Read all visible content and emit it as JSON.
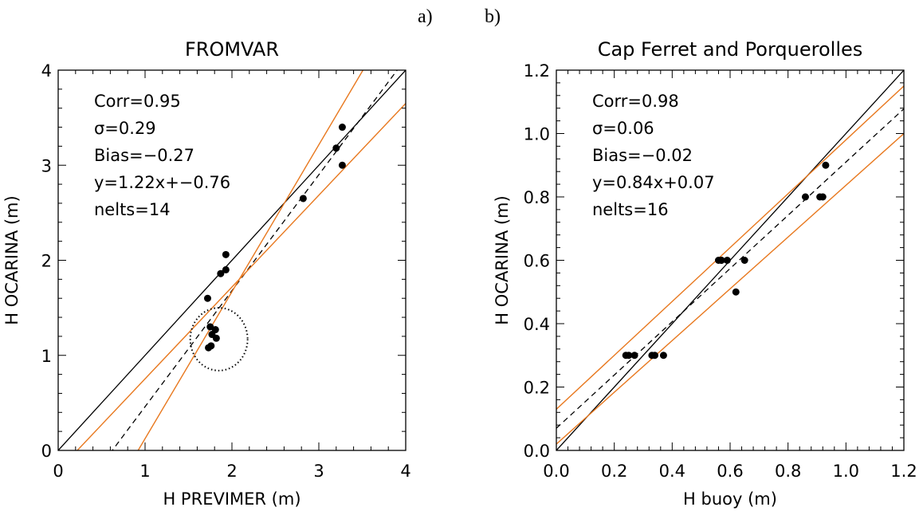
{
  "panel_labels": [
    "a)",
    "b)"
  ],
  "chart_data": [
    {
      "type": "scatter",
      "title": "FROMVAR",
      "xlabel": "H PREVIMER (m)",
      "ylabel": "H OCARINA (m)",
      "xlim": [
        0,
        4
      ],
      "ylim": [
        0,
        4
      ],
      "xticks": [
        0,
        1,
        2,
        3,
        4
      ],
      "yticks": [
        0,
        1,
        2,
        3,
        4
      ],
      "xtick_labels": [
        "0",
        "1",
        "2",
        "3",
        "4"
      ],
      "ytick_labels": [
        "0",
        "1",
        "2",
        "3",
        "4"
      ],
      "grid": false,
      "stats": [
        "Corr=0.95",
        "σ=0.29",
        "Bias=−0.27",
        "y=1.22x+−0.76",
        "nelts=14"
      ],
      "points": [
        [
          1.72,
          1.6
        ],
        [
          1.75,
          1.3
        ],
        [
          1.77,
          1.22
        ],
        [
          1.81,
          1.27
        ],
        [
          1.82,
          1.18
        ],
        [
          1.73,
          1.08
        ],
        [
          1.76,
          1.1
        ],
        [
          1.87,
          1.86
        ],
        [
          1.93,
          1.9
        ],
        [
          1.93,
          2.06
        ],
        [
          2.82,
          2.65
        ],
        [
          3.2,
          3.18
        ],
        [
          3.27,
          3.4
        ],
        [
          3.27,
          3.0
        ]
      ],
      "identity_line": {
        "slope": 1,
        "intercept": 0
      },
      "fit_line": {
        "slope": 1.22,
        "intercept": -0.76
      },
      "confidence_band": {
        "upper": [
          [
            0.92,
            0
          ],
          [
            4.0,
            4.76
          ]
        ],
        "lower": [
          [
            0.22,
            0
          ],
          [
            4.0,
            3.65
          ]
        ]
      },
      "highlight_circle": {
        "center": [
          1.85,
          1.17
        ],
        "radius": 0.33
      },
      "colors": {
        "points": "#000000",
        "identity": "#000000",
        "fit": "#000000",
        "band": "#e8781e",
        "circle": "#000000"
      }
    },
    {
      "type": "scatter",
      "title": "Cap Ferret and Porquerolles",
      "xlabel": "H buoy (m)",
      "ylabel": "H OCARINA (m)",
      "xlim": [
        0,
        1.2
      ],
      "ylim": [
        0,
        1.2
      ],
      "xticks": [
        0,
        0.2,
        0.4,
        0.6,
        0.8,
        1.0,
        1.2
      ],
      "yticks": [
        0,
        0.2,
        0.4,
        0.6,
        0.8,
        1.0,
        1.2
      ],
      "xtick_labels": [
        "0.0",
        "0.2",
        "0.4",
        "0.6",
        "0.8",
        "1.0",
        "1.2"
      ],
      "ytick_labels": [
        "0.0",
        "0.2",
        "0.4",
        "0.6",
        "0.8",
        "1.0",
        "1.2"
      ],
      "grid": false,
      "stats": [
        "Corr=0.98",
        "σ=0.06",
        "Bias=−0.02",
        "y=0.84x+0.07",
        "nelts=16"
      ],
      "points": [
        [
          0.24,
          0.3
        ],
        [
          0.25,
          0.3
        ],
        [
          0.27,
          0.3
        ],
        [
          0.33,
          0.3
        ],
        [
          0.34,
          0.3
        ],
        [
          0.37,
          0.3
        ],
        [
          0.56,
          0.6
        ],
        [
          0.57,
          0.6
        ],
        [
          0.59,
          0.6
        ],
        [
          0.62,
          0.5
        ],
        [
          0.65,
          0.6
        ],
        [
          0.86,
          0.8
        ],
        [
          0.91,
          0.8
        ],
        [
          0.92,
          0.8
        ],
        [
          0.93,
          0.9
        ],
        [
          0.57,
          0.6
        ]
      ],
      "identity_line": {
        "slope": 1,
        "intercept": 0
      },
      "fit_line": {
        "slope": 0.84,
        "intercept": 0.07
      },
      "confidence_band": {
        "upper": [
          [
            0.0,
            0.13
          ],
          [
            1.2,
            1.15
          ]
        ],
        "lower": [
          [
            0.0,
            0.02
          ],
          [
            1.2,
            1.0
          ]
        ]
      },
      "colors": {
        "points": "#000000",
        "identity": "#000000",
        "fit": "#000000",
        "band": "#e8781e"
      }
    }
  ]
}
